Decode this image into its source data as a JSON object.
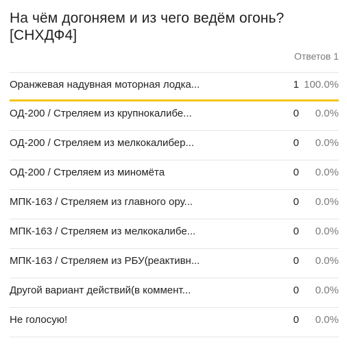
{
  "poll": {
    "title": "На чём догоняем и из чего ведём огонь? [СНХДФ4]",
    "answers_count": "Ответов 1",
    "accent_color": "#f5c518",
    "options": [
      {
        "label": "Оранжевая надувная моторная лодка...",
        "count": "1",
        "percent": "100.0%",
        "share": 100
      },
      {
        "label": "ОД-200 / Стреляем из крупнокалибе...",
        "count": "0",
        "percent": "0.0%",
        "share": 0
      },
      {
        "label": "ОД-200 / Стреляем из мелкокалибер...",
        "count": "0",
        "percent": "0.0%",
        "share": 0
      },
      {
        "label": "ОД-200 / Стреляем из миномёта",
        "count": "0",
        "percent": "0.0%",
        "share": 0
      },
      {
        "label": "МПК-163 / Стреляем из главного ору...",
        "count": "0",
        "percent": "0.0%",
        "share": 0
      },
      {
        "label": "МПК-163 / Стреляем из мелкокалибе...",
        "count": "0",
        "percent": "0.0%",
        "share": 0
      },
      {
        "label": "МПК-163 / Стреляем из РБУ(реактивн...",
        "count": "0",
        "percent": "0.0%",
        "share": 0
      },
      {
        "label": "Другой вариант действий(в коммент...",
        "count": "0",
        "percent": "0.0%",
        "share": 0
      },
      {
        "label": "Не голосую!",
        "count": "0",
        "percent": "0.0%",
        "share": 0
      }
    ]
  }
}
